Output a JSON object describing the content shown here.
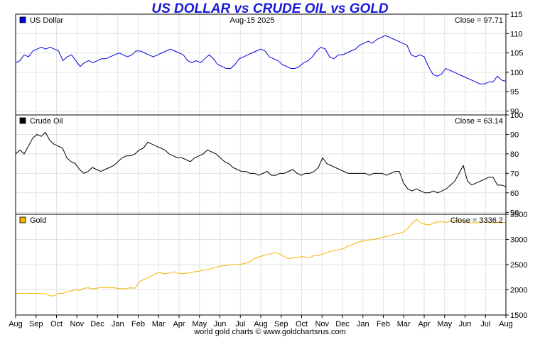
{
  "title": "US DOLLAR vs CRUDE OIL vs GOLD",
  "date_label": "Aug-15  2025",
  "footer": "world gold charts © www.goldchartsrus.com",
  "chart_data": {
    "type": "line",
    "x_tick_labels": [
      "Aug",
      "Sep",
      "Oct",
      "Nov",
      "Dec",
      "Jan",
      "Feb",
      "Mar",
      "Apr",
      "May",
      "Jun",
      "Jul",
      "Aug",
      "Sep",
      "Oct",
      "Nov",
      "Dec",
      "Jan",
      "Feb",
      "Mar",
      "Apr",
      "May",
      "Jun",
      "Jul",
      "Aug"
    ],
    "panels": [
      {
        "name": "US Dollar",
        "close_label": "Close = 97.71",
        "color": "#0000e0",
        "ylim": [
          89,
          115
        ],
        "yticks": [
          90,
          95,
          100,
          105,
          110,
          115
        ],
        "values": [
          102.5,
          103.0,
          104.5,
          104.0,
          105.5,
          106.0,
          106.5,
          106.0,
          106.5,
          106.0,
          105.5,
          103.0,
          104.0,
          104.5,
          103.0,
          101.5,
          102.5,
          103.0,
          102.5,
          103.0,
          103.5,
          103.5,
          104.0,
          104.5,
          105.0,
          104.5,
          104.0,
          104.5,
          105.5,
          105.5,
          105.0,
          104.5,
          104.0,
          104.5,
          105.0,
          105.5,
          106.0,
          105.5,
          105.0,
          104.5,
          103.0,
          102.5,
          103.0,
          102.5,
          103.5,
          104.5,
          103.5,
          102.0,
          101.5,
          101.0,
          101.0,
          102.0,
          103.5,
          104.0,
          104.5,
          105.0,
          105.5,
          106.0,
          105.5,
          104.0,
          103.5,
          103.0,
          102.0,
          101.5,
          101.0,
          101.0,
          101.5,
          102.5,
          103.0,
          104.0,
          105.5,
          106.5,
          106.0,
          104.0,
          103.5,
          104.5,
          104.5,
          105.0,
          105.5,
          106.0,
          107.0,
          107.5,
          108.0,
          107.5,
          108.5,
          109.0,
          109.5,
          109.0,
          108.5,
          108.0,
          107.5,
          107.0,
          104.5,
          104.0,
          104.5,
          104.0,
          101.5,
          99.5,
          99.0,
          99.5,
          101.0,
          100.5,
          100.0,
          99.5,
          99.0,
          98.5,
          98.0,
          97.5,
          97.0,
          97.0,
          97.5,
          97.5,
          99.0,
          98.0,
          97.7
        ]
      },
      {
        "name": "Crude Oil",
        "close_label": "Close = 63.14",
        "color": "#000000",
        "ylim": [
          49,
          100
        ],
        "yticks": [
          50,
          60,
          70,
          80,
          90,
          100
        ],
        "values": [
          80,
          82,
          80,
          84,
          88,
          90,
          89,
          91,
          87,
          85,
          84,
          83,
          78,
          76,
          75,
          72,
          70,
          71,
          73,
          72,
          71,
          72,
          73,
          74,
          76,
          78,
          79,
          79,
          80,
          82,
          83,
          86,
          85,
          84,
          83,
          82,
          80,
          79,
          78,
          78,
          77,
          76,
          78,
          79,
          80,
          82,
          81,
          80,
          78,
          76,
          75,
          73,
          72,
          71,
          71,
          70,
          70,
          69,
          70,
          71,
          69,
          69,
          70,
          70,
          71,
          72,
          70,
          69,
          70,
          70,
          71,
          73,
          78,
          75,
          74,
          73,
          72,
          71,
          70,
          70,
          70,
          70,
          70,
          69,
          70,
          70,
          70,
          69,
          70,
          71,
          71,
          65,
          62,
          61,
          62,
          61,
          60,
          60,
          61,
          60,
          61,
          62,
          64,
          66,
          70,
          74,
          66,
          64,
          65,
          66,
          67,
          68,
          68,
          64,
          64,
          63.14
        ]
      },
      {
        "name": "Gold",
        "close_label": "Close = 3336.2",
        "color": "#f2b400",
        "ylim": [
          1500,
          3500
        ],
        "yticks": [
          1500,
          2000,
          2500,
          3000,
          3500
        ],
        "values": [
          1930,
          1930,
          1920,
          1930,
          1930,
          1930,
          1925,
          1920,
          1880,
          1880,
          1930,
          1930,
          1960,
          1980,
          2000,
          1990,
          2030,
          2040,
          2020,
          2030,
          2050,
          2040,
          2040,
          2040,
          2030,
          2020,
          2030,
          2040,
          2030,
          2160,
          2200,
          2240,
          2280,
          2330,
          2340,
          2320,
          2330,
          2360,
          2330,
          2320,
          2330,
          2340,
          2360,
          2370,
          2390,
          2400,
          2420,
          2450,
          2470,
          2480,
          2490,
          2500,
          2500,
          2510,
          2530,
          2560,
          2620,
          2650,
          2680,
          2700,
          2720,
          2740,
          2710,
          2660,
          2620,
          2630,
          2640,
          2660,
          2650,
          2640,
          2680,
          2680,
          2710,
          2740,
          2770,
          2780,
          2800,
          2820,
          2870,
          2900,
          2940,
          2960,
          2980,
          2990,
          3000,
          3020,
          3040,
          3060,
          3080,
          3110,
          3120,
          3150,
          3220,
          3320,
          3400,
          3330,
          3300,
          3290,
          3320,
          3350,
          3350,
          3340,
          3360,
          3380,
          3370,
          3350,
          3340,
          3330,
          3330,
          3340,
          3350,
          3340,
          3330,
          3340,
          3340,
          3336.2
        ]
      }
    ]
  }
}
